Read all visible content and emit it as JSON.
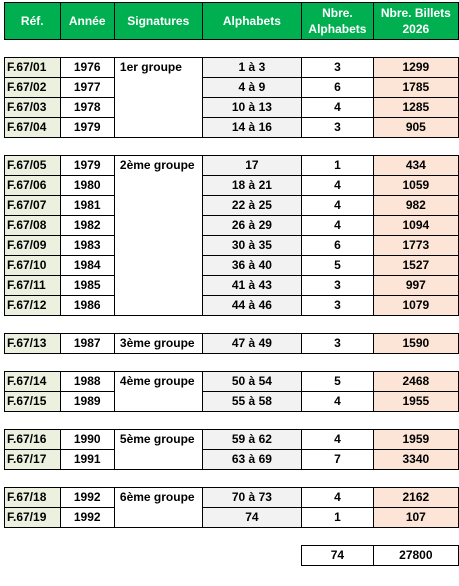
{
  "headers": [
    "Réf.",
    "Année",
    "Signatures",
    "Alphabets",
    "Nbre. Alphabets",
    "Nbre. Billets 2026"
  ],
  "groups": [
    {
      "signature": "1er groupe",
      "rows": [
        {
          "ref": "F.67/01",
          "year": "1976",
          "alphabets": "1 à 3",
          "nb_alpha": "3",
          "nb_billets": "1299"
        },
        {
          "ref": "F.67/02",
          "year": "1977",
          "alphabets": "4 à 9",
          "nb_alpha": "6",
          "nb_billets": "1785"
        },
        {
          "ref": "F.67/03",
          "year": "1978",
          "alphabets": "10 à 13",
          "nb_alpha": "4",
          "nb_billets": "1285"
        },
        {
          "ref": "F.67/04",
          "year": "1979",
          "alphabets": "14 à 16",
          "nb_alpha": "3",
          "nb_billets": "905"
        }
      ]
    },
    {
      "signature": "2ème groupe",
      "rows": [
        {
          "ref": "F.67/05",
          "year": "1979",
          "alphabets": "17",
          "nb_alpha": "1",
          "nb_billets": "434"
        },
        {
          "ref": "F.67/06",
          "year": "1980",
          "alphabets": "18 à 21",
          "nb_alpha": "4",
          "nb_billets": "1059"
        },
        {
          "ref": "F.67/07",
          "year": "1981",
          "alphabets": "22 à 25",
          "nb_alpha": "4",
          "nb_billets": "982"
        },
        {
          "ref": "F.67/08",
          "year": "1982",
          "alphabets": "26 à 29",
          "nb_alpha": "4",
          "nb_billets": "1094"
        },
        {
          "ref": "F.67/09",
          "year": "1983",
          "alphabets": "30 à 35",
          "nb_alpha": "6",
          "nb_billets": "1773"
        },
        {
          "ref": "F.67/10",
          "year": "1984",
          "alphabets": "36 à 40",
          "nb_alpha": "5",
          "nb_billets": "1527"
        },
        {
          "ref": "F.67/11",
          "year": "1985",
          "alphabets": "41 à 43",
          "nb_alpha": "3",
          "nb_billets": "997"
        },
        {
          "ref": "F.67/12",
          "year": "1986",
          "alphabets": "44 à 46",
          "nb_alpha": "3",
          "nb_billets": "1079"
        }
      ]
    },
    {
      "signature": "3ème groupe",
      "rows": [
        {
          "ref": "F.67/13",
          "year": "1987",
          "alphabets": "47 à 49",
          "nb_alpha": "3",
          "nb_billets": "1590"
        }
      ]
    },
    {
      "signature": "4ème groupe",
      "rows": [
        {
          "ref": "F.67/14",
          "year": "1988",
          "alphabets": "50 à 54",
          "nb_alpha": "5",
          "nb_billets": "2468"
        },
        {
          "ref": "F.67/15",
          "year": "1989",
          "alphabets": "55 à 58",
          "nb_alpha": "4",
          "nb_billets": "1955"
        }
      ]
    },
    {
      "signature": "5ème groupe",
      "rows": [
        {
          "ref": "F.67/16",
          "year": "1990",
          "alphabets": "59 à 62",
          "nb_alpha": "4",
          "nb_billets": "1959"
        },
        {
          "ref": "F.67/17",
          "year": "1991",
          "alphabets": "63 à 69",
          "nb_alpha": "7",
          "nb_billets": "3340"
        }
      ]
    },
    {
      "signature": "6ème groupe",
      "rows": [
        {
          "ref": "F.67/18",
          "year": "1992",
          "alphabets": "70 à 73",
          "nb_alpha": "4",
          "nb_billets": "2162"
        },
        {
          "ref": "F.67/19",
          "year": "1992",
          "alphabets": "74",
          "nb_alpha": "1",
          "nb_billets": "107"
        }
      ]
    }
  ],
  "totals": {
    "nb_alpha": "74",
    "nb_billets": "27800"
  }
}
